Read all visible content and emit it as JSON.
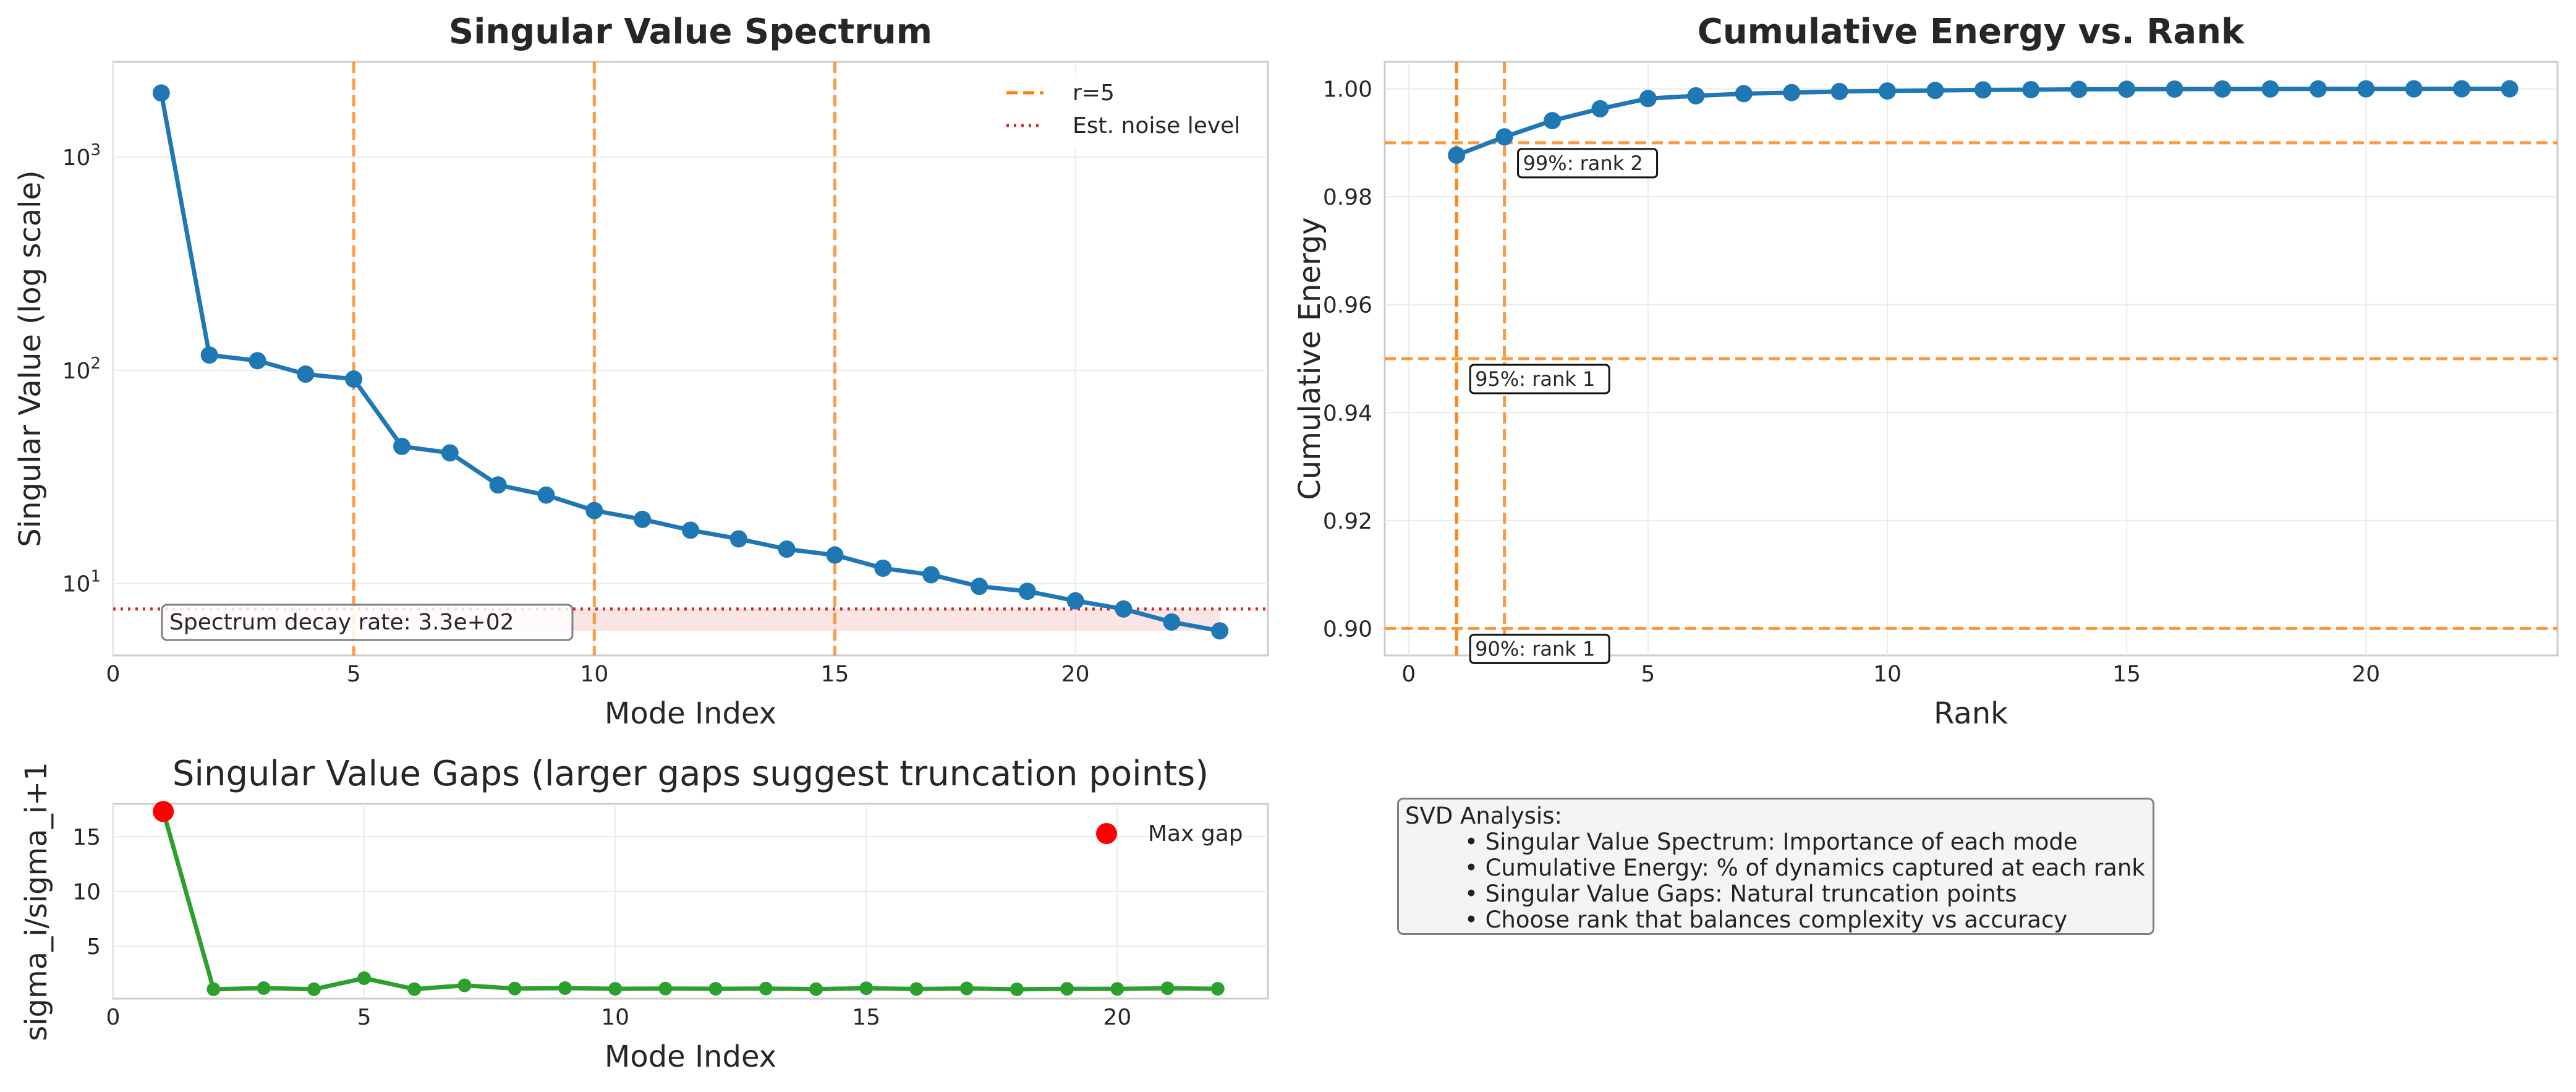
{
  "colors": {
    "series_blue": "#1f77b4",
    "orange": "#ff7f0e",
    "noise_red": "#d62728",
    "gap_green": "#2ca02c",
    "max_red": "#ff0000"
  },
  "chart_data": [
    {
      "type": "line",
      "title": "Singular Value Spectrum",
      "xlabel": "Mode Index",
      "ylabel": "Singular Value (log scale)",
      "yscale": "log",
      "xlim": [
        0,
        24
      ],
      "ylim": [
        4.6,
        2800
      ],
      "x": [
        1,
        2,
        3,
        4,
        5,
        6,
        7,
        8,
        9,
        10,
        11,
        12,
        13,
        14,
        15,
        16,
        17,
        18,
        19,
        20,
        21,
        22,
        23
      ],
      "series": [
        {
          "name": "",
          "values": [
            2000,
            118,
            111,
            96,
            91,
            44,
            41,
            29,
            26,
            22,
            20,
            17.8,
            16.2,
            14.5,
            13.6,
            11.8,
            11.0,
            9.7,
            9.2,
            8.3,
            7.6,
            6.6,
            6.0
          ]
        }
      ],
      "vlines": [
        5,
        10,
        15
      ],
      "noise_level": 7.6,
      "noise_band": [
        6.0,
        7.6
      ],
      "legend": [
        "r=5",
        "Est. noise level"
      ],
      "legend_position": "upper right",
      "annotation": "Spectrum decay rate: 3.3e+02",
      "xticks": [
        "0",
        "5",
        "10",
        "15",
        "20"
      ],
      "yticks": [
        "10",
        "10",
        "10"
      ],
      "ytick_exponents": [
        "1",
        "2",
        "3"
      ],
      "grid": true
    },
    {
      "type": "line",
      "title": "Cumulative Energy vs. Rank",
      "xlabel": "Rank",
      "ylabel": "Cumulative Energy",
      "xlim": [
        -0.5,
        24
      ],
      "ylim": [
        0.895,
        1.005
      ],
      "x": [
        1,
        2,
        3,
        4,
        5,
        6,
        7,
        8,
        9,
        10,
        11,
        12,
        13,
        14,
        15,
        16,
        17,
        18,
        19,
        20,
        21,
        22,
        23
      ],
      "series": [
        {
          "name": "",
          "values": [
            0.9877,
            0.9911,
            0.9941,
            0.9963,
            0.9982,
            0.9987,
            0.9991,
            0.9993,
            0.9995,
            0.9996,
            0.9997,
            0.9998,
            0.99985,
            0.9999,
            0.99993,
            0.99995,
            0.99996,
            0.99997,
            0.99998,
            0.99999,
            0.99999,
            1.0,
            1.0
          ]
        }
      ],
      "hlines": [
        0.99,
        0.95,
        0.9
      ],
      "vlines": [
        1,
        1,
        2
      ],
      "annotations": [
        "99%: rank 2",
        "95%: rank 1",
        "90%: rank 1"
      ],
      "xticks": [
        "0",
        "5",
        "10",
        "15",
        "20"
      ],
      "yticks": [
        "0.90",
        "0.92",
        "0.94",
        "0.96",
        "0.98",
        "1.00"
      ],
      "grid": true
    },
    {
      "type": "line",
      "title": "Singular Value Gaps (larger gaps suggest truncation points)",
      "xlabel": "Mode Index",
      "ylabel": "sigma_i/sigma_i+1",
      "xlim": [
        0,
        23
      ],
      "ylim": [
        0.2,
        18
      ],
      "x": [
        1,
        2,
        3,
        4,
        5,
        6,
        7,
        8,
        9,
        10,
        11,
        12,
        13,
        14,
        15,
        16,
        17,
        18,
        19,
        20,
        21,
        22
      ],
      "series": [
        {
          "name": "",
          "values": [
            17.3,
            1.06,
            1.16,
            1.06,
            2.07,
            1.07,
            1.41,
            1.12,
            1.16,
            1.1,
            1.12,
            1.1,
            1.12,
            1.07,
            1.15,
            1.08,
            1.13,
            1.05,
            1.1,
            1.09,
            1.15,
            1.1
          ]
        }
      ],
      "max_gap": {
        "x": 1,
        "y": 17.3
      },
      "legend": [
        "Max gap"
      ],
      "legend_position": "upper right",
      "xticks": [
        "0",
        "5",
        "10",
        "15",
        "20"
      ],
      "yticks": [
        "5",
        "10",
        "15"
      ],
      "grid": true
    }
  ],
  "info": {
    "heading": "SVD Analysis:",
    "lines": [
      "• Singular Value Spectrum: Importance of each mode",
      "• Cumulative Energy: % of dynamics captured at each rank",
      "• Singular Value Gaps: Natural truncation points",
      "• Choose rank that balances complexity vs accuracy"
    ]
  }
}
